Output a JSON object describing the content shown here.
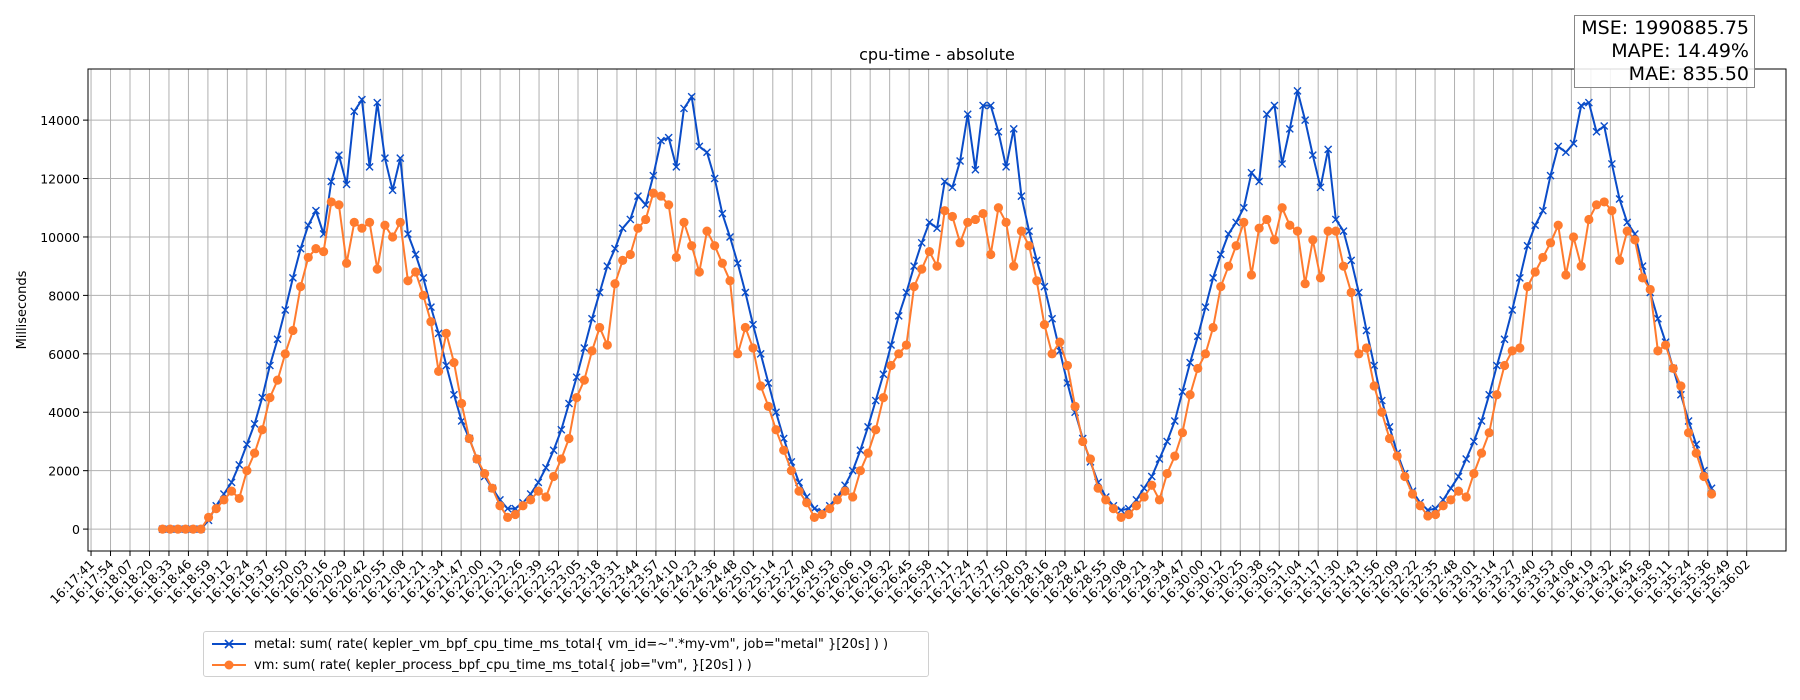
{
  "chart_data": {
    "type": "line",
    "title": "cpu-time - absolute",
    "xlabel": "",
    "ylabel": "Milliseconds",
    "ylim": [
      -750,
      15750
    ],
    "yticks": [
      0,
      2000,
      4000,
      6000,
      8000,
      10000,
      12000,
      14000
    ],
    "ytick_labels": [
      "0",
      "2000",
      "4000",
      "6000",
      "8000",
      "10000",
      "12000",
      "14000"
    ],
    "x_units": "seconds after 16:17:41",
    "xlim": [
      -2,
      1114
    ],
    "xtick_step_seconds": 12.802,
    "xtick_labels": [
      "16:17:41",
      "16:17:54",
      "16:18:07",
      "16:18:20",
      "16:18:33",
      "16:18:46",
      "16:18:59",
      "16:19:12",
      "16:19:24",
      "16:19:37",
      "16:19:50",
      "16:20:03",
      "16:20:16",
      "16:20:29",
      "16:20:42",
      "16:20:55",
      "16:21:08",
      "16:21:21",
      "16:21:34",
      "16:21:47",
      "16:22:00",
      "16:22:13",
      "16:22:26",
      "16:22:39",
      "16:22:52",
      "16:23:05",
      "16:23:18",
      "16:23:31",
      "16:23:44",
      "16:23:57",
      "16:24:10",
      "16:24:23",
      "16:24:36",
      "16:24:48",
      "16:25:01",
      "16:25:14",
      "16:25:27",
      "16:25:40",
      "16:25:53",
      "16:26:06",
      "16:26:19",
      "16:26:32",
      "16:26:45",
      "16:26:58",
      "16:27:11",
      "16:27:24",
      "16:27:37",
      "16:27:50",
      "16:28:03",
      "16:28:16",
      "16:28:29",
      "16:28:42",
      "16:28:55",
      "16:29:08",
      "16:29:21",
      "16:29:34",
      "16:29:47",
      "16:30:00",
      "16:30:12",
      "16:30:25",
      "16:30:38",
      "16:30:51",
      "16:31:04",
      "16:31:17",
      "16:31:30",
      "16:31:43",
      "16:31:56",
      "16:32:09",
      "16:32:22",
      "16:32:35",
      "16:32:48",
      "16:33:01",
      "16:33:14",
      "16:33:27",
      "16:33:40",
      "16:33:53",
      "16:34:06",
      "16:34:19",
      "16:34:32",
      "16:34:45",
      "16:34:58",
      "16:35:11",
      "16:35:24",
      "16:35:36",
      "16:35:49",
      "16:36:02"
    ],
    "x_start_seconds": 47,
    "x_step_seconds": 5.04,
    "grid": true,
    "legend_position": "below plot, left",
    "series": [
      {
        "name": "metal: sum( rate( kepler_vm_bpf_cpu_time_ms_total{ vm_id=~\".*my-vm\", job=\"metal\" }[20s] ) )",
        "marker": "x",
        "color": "#0a4cc8",
        "values": [
          0,
          0,
          0,
          0,
          0,
          0,
          300,
          800,
          1200,
          1600,
          2200,
          2900,
          3600,
          4500,
          5600,
          6500,
          7500,
          8600,
          9600,
          10400,
          10900,
          10100,
          11900,
          12800,
          11800,
          14300,
          14700,
          12400,
          14600,
          12700,
          11600,
          12700,
          10100,
          9400,
          8600,
          7600,
          6700,
          5600,
          4600,
          3700,
          3100,
          2400,
          1800,
          1400,
          1000,
          700,
          700,
          900,
          1200,
          1600,
          2100,
          2700,
          3400,
          4300,
          5200,
          6200,
          7200,
          8100,
          9000,
          9600,
          10300,
          10600,
          11400,
          11100,
          12100,
          13300,
          13400,
          12400,
          14400,
          14800,
          13100,
          12900,
          12000,
          10800,
          10000,
          9100,
          8100,
          7000,
          6000,
          5000,
          4000,
          3100,
          2300,
          1600,
          1100,
          700,
          600,
          800,
          1100,
          1500,
          2000,
          2700,
          3500,
          4400,
          5300,
          6300,
          7300,
          8100,
          9000,
          9800,
          10500,
          10300,
          11900,
          11700,
          12600,
          14200,
          12300,
          14500,
          14500,
          13600,
          12400,
          13700,
          11400,
          10200,
          9200,
          8300,
          7200,
          6100,
          5000,
          4000,
          3100,
          2300,
          1600,
          1100,
          800,
          650,
          700,
          1000,
          1400,
          1800,
          2400,
          3000,
          3700,
          4700,
          5700,
          6600,
          7600,
          8600,
          9400,
          10100,
          10500,
          11000,
          12200,
          11900,
          14200,
          14500,
          12500,
          13700,
          15000,
          14000,
          12800,
          11700,
          13000,
          10600,
          10200,
          9200,
          8100,
          6800,
          5600,
          4400,
          3500,
          2600,
          1900,
          1300,
          900,
          650,
          700,
          1000,
          1400,
          1800,
          2400,
          3000,
          3700,
          4600,
          5600,
          6500,
          7500,
          8600,
          9700,
          10400,
          10900,
          12100,
          13100,
          12900,
          13200,
          14500,
          14600,
          13600,
          13800,
          12500,
          11300,
          10500,
          10100,
          9000,
          8100,
          7200,
          6400,
          5500,
          4600,
          3700,
          2900,
          2000,
          1400
        ]
      },
      {
        "name": "vm: sum( rate( kepler_process_bpf_cpu_time_ms_total{ job=\"vm\", }[20s] ) )",
        "marker": "o",
        "color": "#ff7b2e",
        "values": [
          0,
          0,
          0,
          0,
          0,
          0,
          400,
          700,
          1000,
          1300,
          1050,
          2000,
          2600,
          3400,
          4500,
          5100,
          6000,
          6800,
          8300,
          9300,
          9600,
          9500,
          11200,
          11100,
          9100,
          10500,
          10300,
          10500,
          8900,
          10400,
          10000,
          10500,
          8500,
          8800,
          8000,
          7100,
          5400,
          6700,
          5700,
          4300,
          3100,
          2400,
          1900,
          1400,
          800,
          400,
          500,
          800,
          1000,
          1300,
          1100,
          1800,
          2400,
          3100,
          4500,
          5100,
          6100,
          6900,
          6300,
          8400,
          9200,
          9400,
          10300,
          10600,
          11500,
          11400,
          11100,
          9300,
          10500,
          9700,
          8800,
          10200,
          9700,
          9100,
          8500,
          6000,
          6900,
          6200,
          4900,
          4200,
          3400,
          2700,
          2000,
          1300,
          900,
          400,
          500,
          700,
          1000,
          1300,
          1100,
          2000,
          2600,
          3400,
          4500,
          5600,
          6000,
          6300,
          8300,
          8900,
          9500,
          9000,
          10900,
          10700,
          9800,
          10500,
          10600,
          10800,
          9400,
          11000,
          10500,
          9000,
          10200,
          9700,
          8500,
          7000,
          6000,
          6400,
          5600,
          4200,
          3000,
          2400,
          1400,
          1000,
          700,
          400,
          500,
          800,
          1100,
          1500,
          1000,
          1900,
          2500,
          3300,
          4600,
          5500,
          6000,
          6900,
          8300,
          9000,
          9700,
          10500,
          8700,
          10300,
          10600,
          9900,
          11000,
          10400,
          10200,
          8400,
          9900,
          8600,
          10200,
          10200,
          9000,
          8100,
          6000,
          6200,
          4900,
          4000,
          3100,
          2500,
          1800,
          1200,
          800,
          450,
          500,
          800,
          1000,
          1300,
          1100,
          1900,
          2600,
          3300,
          4600,
          5600,
          6100,
          6200,
          8300,
          8800,
          9300,
          9800,
          10400,
          8700,
          10000,
          9000,
          10600,
          11100,
          11200,
          10900,
          9200,
          10200,
          9900,
          8600,
          8200,
          6100,
          6300,
          5500,
          4900,
          3300,
          2600,
          1800,
          1200
        ]
      }
    ]
  },
  "metrics": {
    "mse": "MSE: 1990885.75",
    "mape": "MAPE: 14.49%",
    "mae": "MAE: 835.50"
  }
}
